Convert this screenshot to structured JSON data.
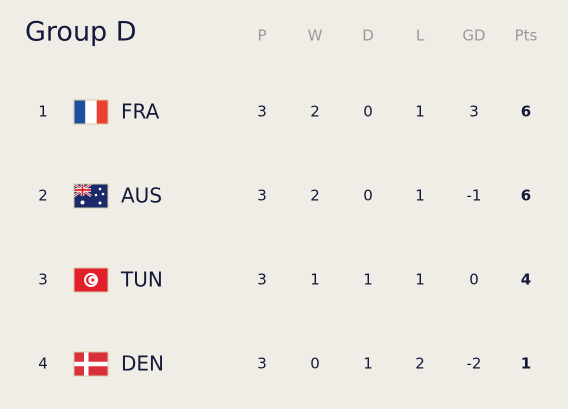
{
  "header": {
    "title": "Group D"
  },
  "table": {
    "columns": [
      "P",
      "W",
      "D",
      "L",
      "GD",
      "Pts"
    ],
    "rows": [
      {
        "rank": 1,
        "team": "FRA",
        "stats": [
          3,
          2,
          0,
          1,
          3,
          6
        ]
      },
      {
        "rank": 2,
        "team": "AUS",
        "stats": [
          3,
          2,
          0,
          1,
          -1,
          6
        ]
      },
      {
        "rank": 3,
        "team": "TUN",
        "stats": [
          3,
          1,
          1,
          1,
          0,
          4
        ]
      },
      {
        "rank": 4,
        "team": "DEN",
        "stats": [
          3,
          0,
          1,
          2,
          -2,
          1
        ]
      }
    ]
  }
}
